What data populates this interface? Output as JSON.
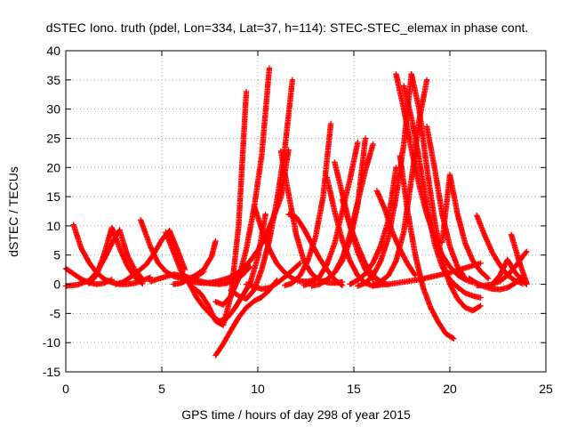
{
  "chart_data": {
    "type": "scatter",
    "title": "dSTEC Iono. truth (pdel, Lon=334, Lat=37, h=114): STEC-STEC_elemax in phase cont.",
    "xlabel": "GPS time / hours of day 298 of year 2015",
    "ylabel": "dSTEC  / TECUs",
    "xlim": [
      0,
      25
    ],
    "ylim": [
      -15,
      40
    ],
    "xticks": [
      0,
      5,
      10,
      15,
      20,
      25
    ],
    "yticks": [
      -15,
      -10,
      -5,
      0,
      5,
      10,
      15,
      20,
      25,
      30,
      35,
      40
    ],
    "grid": true,
    "marker": "+",
    "series_color": "#ff0000",
    "series": [
      {
        "x": [
          0.0,
          0.4,
          0.8,
          1.2,
          1.6,
          2.0,
          2.4
        ],
        "y": [
          2.7,
          1.8,
          0.9,
          0.3,
          0.0,
          0.2,
          0.8
        ]
      },
      {
        "x": [
          0.4,
          0.8,
          1.2,
          1.6,
          2.0,
          2.4,
          2.8,
          3.2,
          3.6,
          4.0,
          4.4
        ],
        "y": [
          10.2,
          6.2,
          3.8,
          2.0,
          0.9,
          0.3,
          0.0,
          0.0,
          0.2,
          0.6,
          1.2
        ]
      },
      {
        "x": [
          0.0,
          0.6,
          1.2,
          1.6,
          2.0,
          2.4,
          2.8,
          3.2,
          3.6,
          4.0
        ],
        "y": [
          -0.3,
          -0.1,
          0.6,
          2.0,
          4.3,
          7.0,
          9.3,
          5.0,
          2.4,
          0.9
        ]
      },
      {
        "x": [
          1.2,
          1.6,
          2.0,
          2.4,
          2.8,
          3.2,
          3.6,
          4.0
        ],
        "y": [
          0.1,
          1.5,
          5.2,
          9.7,
          6.2,
          3.2,
          1.2,
          0.1
        ]
      },
      {
        "x": [
          2.6,
          3.0,
          3.4,
          3.8,
          4.2,
          4.6,
          5.0,
          5.4,
          5.8,
          6.2
        ],
        "y": [
          0.0,
          0.4,
          1.3,
          2.3,
          3.4,
          5.3,
          7.6,
          9.2,
          6.0,
          2.5
        ]
      },
      {
        "x": [
          3.9,
          4.4,
          4.8,
          5.2,
          5.6,
          6.0,
          6.4,
          6.8,
          7.2
        ],
        "y": [
          11.0,
          6.5,
          3.7,
          2.2,
          1.4,
          1.0,
          0.9,
          1.3,
          2.2
        ]
      },
      {
        "x": [
          4.4,
          5.0,
          5.6,
          6.2,
          6.8,
          7.4,
          8.0,
          8.4,
          8.8,
          9.2,
          9.6
        ],
        "y": [
          0.5,
          1.1,
          1.7,
          1.4,
          0.7,
          0.2,
          0.0,
          0.2,
          0.7,
          1.6,
          3.0
        ]
      },
      {
        "x": [
          5.2,
          5.6,
          6.0,
          6.4,
          6.8,
          7.2,
          7.6,
          8.0,
          8.4,
          8.8,
          9.2,
          9.6,
          10.0,
          10.4
        ],
        "y": [
          8.9,
          5.6,
          2.3,
          0.3,
          -2.2,
          -4.0,
          -5.4,
          -6.3,
          -5.8,
          -4.1,
          -2.0,
          0.2,
          4.6,
          12.0
        ]
      },
      {
        "x": [
          5.6,
          6.0,
          6.4,
          6.8,
          7.2,
          7.6,
          7.8
        ],
        "y": [
          0.0,
          0.2,
          0.9,
          1.6,
          2.6,
          4.8,
          7.4
        ]
      },
      {
        "x": [
          6.4,
          6.8,
          7.2,
          7.6,
          8.0,
          8.4,
          8.8,
          9.2,
          9.6,
          10.0,
          10.4,
          10.8,
          11.2,
          11.6
        ],
        "y": [
          0.5,
          0.3,
          0.2,
          0.3,
          0.6,
          1.0,
          1.6,
          2.6,
          4.0,
          5.8,
          8.2,
          11.4,
          14.8,
          23.0
        ]
      },
      {
        "x": [
          6.6,
          7.0,
          7.4,
          7.8,
          8.2,
          8.6,
          9.0,
          9.4
        ],
        "y": [
          -0.5,
          -1.5,
          -3.5,
          -6.3,
          -7.0,
          -2.0,
          10.0,
          33.0
        ]
      },
      {
        "x": [
          7.8,
          8.2,
          8.6,
          9.0,
          9.4,
          9.8,
          10.2,
          10.6
        ],
        "y": [
          -3.0,
          -3.5,
          -2.0,
          1.0,
          6.0,
          13.0,
          22.0,
          37.0
        ]
      },
      {
        "x": [
          8.6,
          9.0,
          9.4,
          9.8,
          10.2,
          10.6,
          11.0,
          11.4,
          11.8
        ],
        "y": [
          -1.0,
          -2.0,
          -2.5,
          -1.0,
          2.5,
          7.5,
          14.5,
          23.0,
          35.0
        ]
      },
      {
        "x": [
          7.8,
          8.2,
          8.6,
          9.0,
          9.4,
          9.8,
          10.2,
          10.6,
          11.0
        ],
        "y": [
          -12.2,
          -10.2,
          -7.9,
          -5.7,
          -4.0,
          -2.9,
          -2.2,
          -1.0,
          0.7
        ]
      },
      {
        "x": [
          9.4,
          9.8,
          10.2,
          10.6,
          11.0,
          11.4,
          11.8,
          12.2
        ],
        "y": [
          0.0,
          -0.4,
          -0.8,
          -0.6,
          0.2,
          1.2,
          2.4,
          3.6
        ]
      },
      {
        "x": [
          9.8,
          10.2,
          10.6,
          11.0,
          11.4,
          11.8,
          12.2,
          12.6,
          13.0
        ],
        "y": [
          13.5,
          9.5,
          6.0,
          3.5,
          2.0,
          1.0,
          0.5,
          0.5,
          0.8
        ]
      },
      {
        "x": [
          11.2,
          11.6,
          12.0,
          12.4,
          12.8,
          13.2,
          13.6,
          14.0,
          14.4
        ],
        "y": [
          22.8,
          15.5,
          8.5,
          4.0,
          1.8,
          0.7,
          0.3,
          0.2,
          0.4
        ]
      },
      {
        "x": [
          11.6,
          12.0,
          12.4,
          12.8,
          13.2,
          13.6,
          14.0,
          14.4
        ],
        "y": [
          12.0,
          11.5,
          9.5,
          7.0,
          4.5,
          2.5,
          0.8,
          -0.2
        ]
      },
      {
        "x": [
          11.4,
          11.8,
          12.2,
          12.6,
          13.0,
          13.4,
          13.8
        ],
        "y": [
          -0.2,
          0.2,
          1.5,
          4.0,
          8.0,
          15.0,
          27.5
        ]
      },
      {
        "x": [
          12.4,
          12.8,
          13.2,
          13.6,
          14.0,
          14.4,
          14.8,
          15.2
        ],
        "y": [
          -0.2,
          0.3,
          1.2,
          3.4,
          7.0,
          12.5,
          18.0,
          24.3
        ]
      },
      {
        "x": [
          12.8,
          13.2,
          13.6,
          14.0,
          14.4,
          14.8,
          15.2,
          15.6
        ],
        "y": [
          -0.3,
          0.0,
          0.7,
          2.0,
          4.0,
          7.5,
          13.5,
          25.0
        ]
      },
      {
        "x": [
          13.2,
          13.6,
          14.0,
          14.4,
          14.8,
          15.2,
          15.6,
          16.0
        ],
        "y": [
          0.2,
          0.8,
          2.0,
          4.5,
          8.5,
          14.0,
          19.5,
          24.0
        ]
      },
      {
        "x": [
          13.6,
          14.0,
          14.4,
          14.8,
          15.2,
          15.6,
          16.0,
          16.4
        ],
        "y": [
          18.3,
          12.5,
          7.5,
          4.0,
          1.5,
          0.2,
          -0.3,
          0.0
        ]
      },
      {
        "x": [
          14.0,
          14.4,
          14.8,
          15.2,
          15.6,
          16.0
        ],
        "y": [
          20.9,
          15.5,
          10.0,
          5.5,
          2.5,
          0.8
        ]
      },
      {
        "x": [
          14.4,
          14.8,
          15.2,
          15.6,
          16.0,
          16.4,
          16.8
        ],
        "y": [
          14.5,
          10.0,
          6.5,
          3.5,
          1.5,
          0.4,
          -0.1
        ]
      },
      {
        "x": [
          14.8,
          15.2,
          15.6,
          16.0,
          16.4,
          16.8,
          17.2
        ],
        "y": [
          0.0,
          0.7,
          1.8,
          3.7,
          6.6,
          11.0,
          20.0
        ]
      },
      {
        "x": [
          16.2,
          16.6,
          17.0,
          17.4,
          17.8,
          18.2
        ],
        "y": [
          16.0,
          13.0,
          9.0,
          6.0,
          3.5,
          1.5
        ]
      },
      {
        "x": [
          15.2,
          15.6,
          16.0,
          16.4,
          16.8,
          17.2,
          17.6,
          18.0
        ],
        "y": [
          -0.3,
          0.2,
          1.5,
          4.0,
          8.0,
          15.0,
          24.0,
          36.0
        ]
      },
      {
        "x": [
          16.0,
          16.4,
          16.8,
          17.2,
          17.6,
          18.0,
          18.4,
          18.8
        ],
        "y": [
          0.0,
          0.5,
          1.5,
          4.0,
          9.0,
          18.0,
          28.0,
          35.0
        ]
      },
      {
        "x": [
          17.2,
          17.6,
          18.0,
          18.4,
          18.8,
          19.2,
          19.6,
          20.0,
          20.4,
          20.8,
          21.2
        ],
        "y": [
          36.0,
          30.0,
          23.0,
          17.0,
          12.0,
          8.0,
          5.0,
          3.0,
          1.6,
          0.8,
          0.3
        ]
      },
      {
        "x": [
          17.6,
          18.0,
          18.4,
          18.8,
          19.2,
          19.6,
          20.0,
          20.4,
          20.8,
          21.2,
          21.6
        ],
        "y": [
          34.0,
          28.5,
          21.5,
          13.5,
          7.0,
          3.0,
          0.8,
          -0.5,
          -1.5,
          -2.0,
          -2.3
        ]
      },
      {
        "x": [
          18.0,
          18.4,
          18.8,
          19.2,
          19.6,
          20.0,
          20.4,
          20.8,
          21.2,
          21.6
        ],
        "y": [
          36.0,
          30.0,
          20.0,
          11.0,
          4.0,
          0.0,
          -2.5,
          -4.0,
          -4.5,
          -3.7
        ]
      },
      {
        "x": [
          17.4,
          17.8,
          18.2,
          18.6,
          19.0,
          19.4,
          19.8,
          20.2
        ],
        "y": [
          22.0,
          12.5,
          5.0,
          -0.5,
          -4.0,
          -6.5,
          -8.5,
          -9.3
        ]
      },
      {
        "x": [
          18.8,
          19.2,
          19.6,
          20.0,
          20.4,
          20.8
        ],
        "y": [
          27.0,
          20.0,
          12.0,
          6.5,
          3.0,
          1.0
        ]
      },
      {
        "x": [
          19.6,
          20.0,
          20.4,
          20.8,
          21.2,
          21.6,
          22.0
        ],
        "y": [
          7.2,
          18.8,
          12.0,
          7.0,
          4.0,
          2.2,
          1.0
        ]
      },
      {
        "x": [
          16.0,
          16.8,
          17.6,
          18.4,
          19.2,
          20.0,
          20.8,
          21.6
        ],
        "y": [
          -0.2,
          0.0,
          0.4,
          0.8,
          1.4,
          2.0,
          2.8,
          3.6
        ]
      },
      {
        "x": [
          21.4,
          21.8,
          22.2,
          22.6,
          23.0,
          23.4,
          23.8
        ],
        "y": [
          11.8,
          8.5,
          5.5,
          3.3,
          1.6,
          0.6,
          0.1
        ]
      },
      {
        "x": [
          21.0,
          21.4,
          21.8,
          22.2,
          22.6,
          23.0,
          23.4,
          23.8
        ],
        "y": [
          1.0,
          0.2,
          -0.4,
          -0.8,
          -0.9,
          -0.6,
          0.2,
          1.5
        ]
      },
      {
        "x": [
          21.4,
          21.8,
          22.2,
          22.6,
          23.0,
          23.4,
          23.8,
          24.0
        ],
        "y": [
          -0.2,
          -0.2,
          0.0,
          0.5,
          1.5,
          3.0,
          4.8,
          5.6
        ]
      },
      {
        "x": [
          22.2,
          22.6,
          23.0,
          23.4,
          23.8,
          24.0
        ],
        "y": [
          0.0,
          1.5,
          4.2,
          2.0,
          0.5,
          0.0
        ]
      },
      {
        "x": [
          23.2,
          23.6,
          24.0
        ],
        "y": [
          8.5,
          4.0,
          0.2
        ]
      }
    ]
  }
}
